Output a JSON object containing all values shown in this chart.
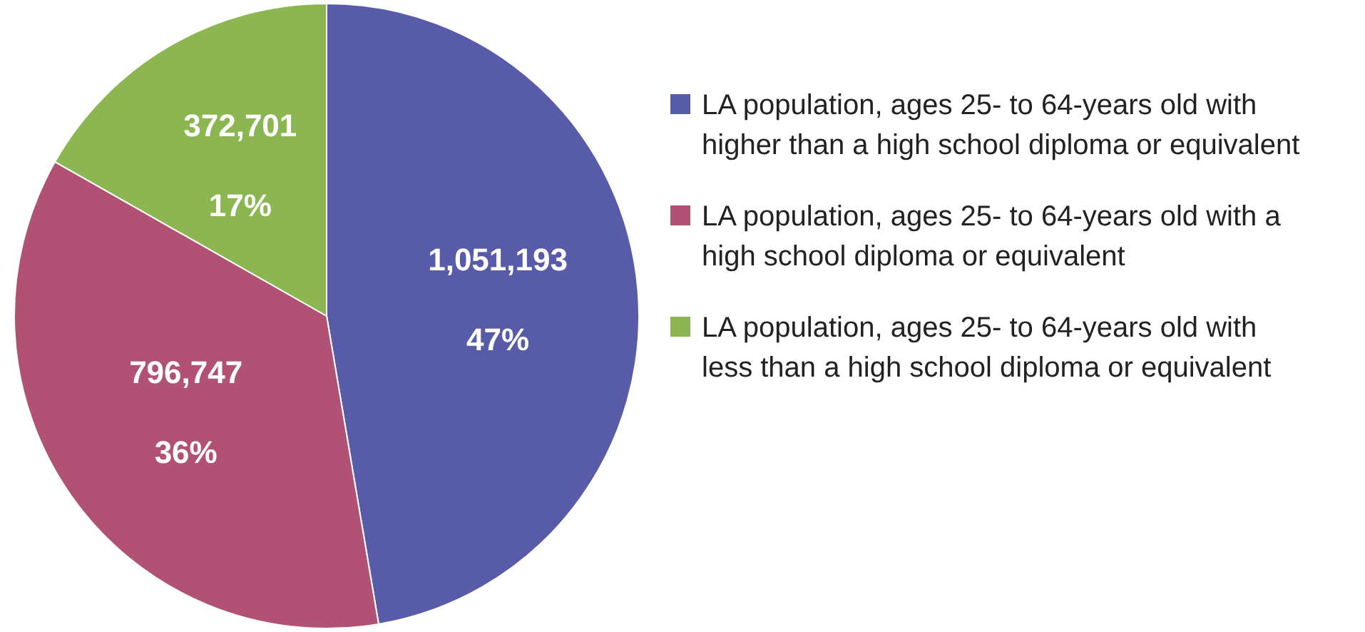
{
  "chart_data": {
    "type": "pie",
    "categories": [
      "LA population, ages 25- to 64-years old with higher than a high school diploma or equivalent",
      "LA population, ages 25- to 64-years old with a high school diploma or equivalent",
      "LA population, ages 25- to 64-years old with less than a high school diploma or equivalent"
    ],
    "values": [
      1051193,
      796747,
      372701
    ],
    "colors": [
      "#585ca8",
      "#b15274",
      "#8bb651"
    ],
    "value_labels": [
      "1,051,193",
      "796,747",
      "372,701"
    ],
    "annotations": [
      "47%",
      "36%",
      "17%"
    ],
    "legend": "right"
  }
}
